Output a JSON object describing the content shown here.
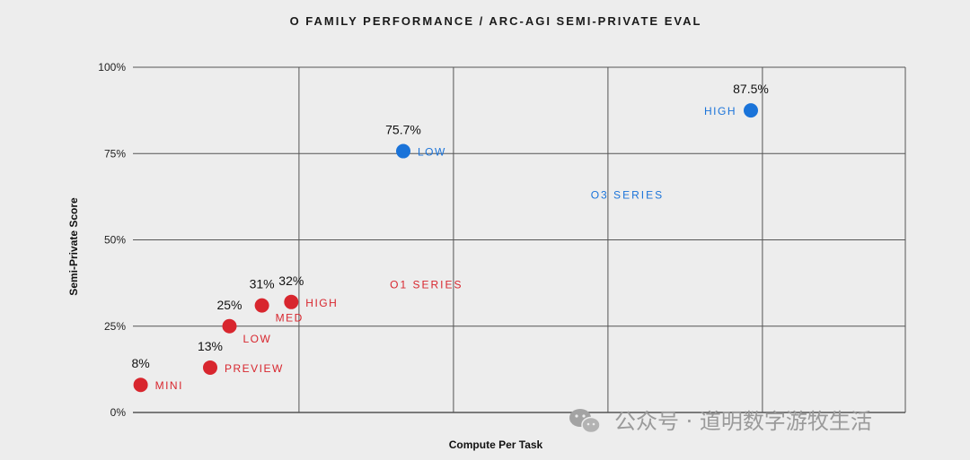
{
  "chart_data": {
    "type": "scatter",
    "title": "O FAMILY PERFORMANCE / ARC-AGI SEMI-PRIVATE EVAL",
    "xlabel": "Compute Per Task",
    "ylabel": "Semi-Private Score",
    "ylim": [
      0,
      100
    ],
    "yticks": [
      {
        "value": 0,
        "label": "0%"
      },
      {
        "value": 25,
        "label": "25%"
      },
      {
        "value": 50,
        "label": "50%"
      },
      {
        "value": 75,
        "label": "75%"
      },
      {
        "value": 100,
        "label": "100%"
      }
    ],
    "xlim": [
      0,
      10
    ],
    "x_gridlines": [
      0,
      2.15,
      4.15,
      6.15,
      8.15,
      10
    ],
    "grid": true,
    "series": [
      {
        "name": "O1 SERIES",
        "color": "#d8262e",
        "label_x": 3.8,
        "label_y": 37,
        "points": [
          {
            "name": "MINI",
            "x": 0.1,
            "y": 8,
            "value_label": "8%"
          },
          {
            "name": "PREVIEW",
            "x": 1.0,
            "y": 13,
            "value_label": "13%"
          },
          {
            "name": "LOW",
            "x": 1.25,
            "y": 25,
            "value_label": "25%"
          },
          {
            "name": "MED",
            "x": 1.67,
            "y": 31,
            "value_label": "31%"
          },
          {
            "name": "HIGH",
            "x": 2.05,
            "y": 32,
            "value_label": "32%"
          }
        ]
      },
      {
        "name": "O3 SERIES",
        "color": "#1a73d9",
        "label_x": 6.4,
        "label_y": 63,
        "points": [
          {
            "name": "LOW",
            "x": 3.5,
            "y": 75.7,
            "value_label": "75.7%"
          },
          {
            "name": "HIGH",
            "x": 8.0,
            "y": 87.5,
            "value_label": "87.5%"
          }
        ]
      }
    ]
  },
  "watermark": {
    "icon": "wechat-icon",
    "text": "公众号 · 道明数字游牧生活"
  }
}
